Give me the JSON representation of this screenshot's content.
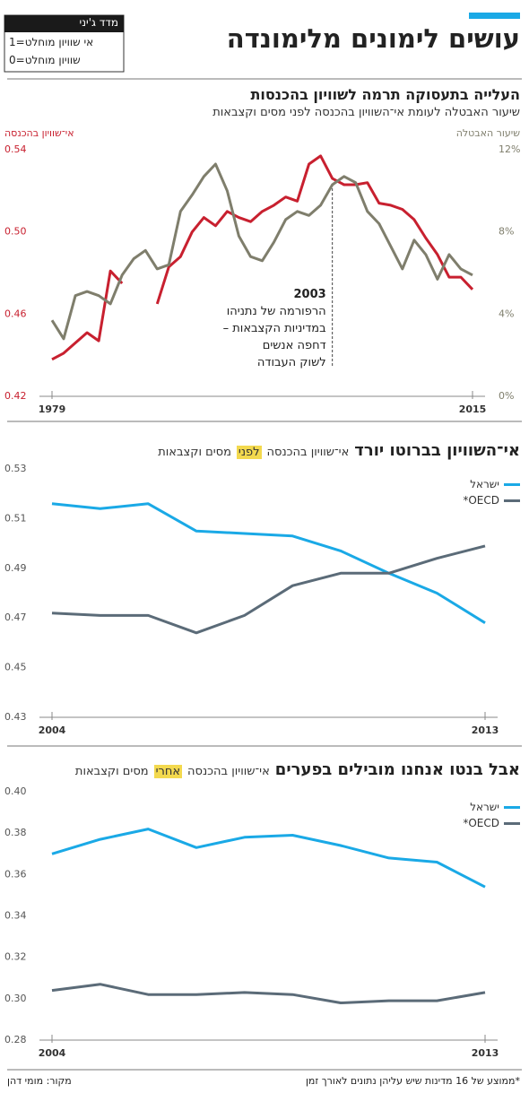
{
  "header": {
    "title": "עושים לימונים מלימונדה"
  },
  "legend_box": {
    "title": "מדד ג'יני",
    "items": [
      "1=אי שוויון מוחלט",
      "0=שוויון מוחלט"
    ]
  },
  "chart_data": [
    {
      "type": "line",
      "title": "העלייה בתעסוקה תרמה לשוויון בהכנסות",
      "subtitle": "שיעור האבטלה לעומת אי־השוויון בהכנסה לפני מסים וקצבאות",
      "ylabel": "אי־שוויון בהכנסה",
      "y2label": "שיעור האבטלה",
      "colored_axes": true,
      "x": [
        1979,
        1980,
        1981,
        1982,
        1983,
        1984,
        1985,
        1986,
        1987,
        1988,
        1989,
        1990,
        1991,
        1992,
        1993,
        1994,
        1995,
        1996,
        1997,
        1998,
        1999,
        2000,
        2001,
        2002,
        2003,
        2004,
        2005,
        2006,
        2007,
        2008,
        2009,
        2010,
        2011,
        2012,
        2013,
        2014,
        2015
      ],
      "xlim": [
        1979,
        2015
      ],
      "xticks": [
        1979,
        2015
      ],
      "ylim": [
        0.42,
        0.54
      ],
      "yticks": [
        0.42,
        0.46,
        {
          "value": 0.5,
          "label": "0.50"
        },
        0.54
      ],
      "y2lim": [
        0,
        12
      ],
      "y2ticks": [
        {
          "value": 0,
          "label": "0%"
        },
        {
          "value": 4,
          "label": "4%"
        },
        {
          "value": 8,
          "label": "8%"
        },
        {
          "value": 12,
          "label": "12%"
        }
      ],
      "series": [
        {
          "color": "#c8202f",
          "values": [
            0.438,
            0.441,
            0.446,
            0.451,
            0.447,
            0.481,
            0.475,
            null,
            null,
            0.465,
            0.483,
            0.488,
            0.5,
            0.507,
            0.503,
            0.51,
            0.507,
            0.505,
            0.51,
            0.513,
            0.517,
            0.515,
            0.533,
            0.537,
            0.526,
            0.523,
            0.523,
            0.524,
            0.514,
            0.513,
            0.511,
            0.506,
            0.497,
            0.489,
            0.478,
            0.478,
            0.472
          ]
        },
        {
          "color": "#7f7e6c",
          "axis": "y2",
          "values": [
            3.7,
            2.8,
            4.9,
            5.1,
            4.9,
            4.5,
            5.9,
            6.7,
            7.1,
            6.2,
            6.4,
            9.0,
            9.8,
            10.7,
            11.3,
            10.0,
            7.8,
            6.8,
            6.6,
            7.5,
            8.6,
            9.0,
            8.8,
            9.3,
            10.3,
            10.7,
            10.4,
            9.0,
            8.4,
            7.3,
            6.2,
            7.6,
            6.9,
            5.7,
            6.9,
            6.2,
            5.9
          ]
        }
      ],
      "annotation": {
        "x": 2003,
        "label": "2003",
        "text": [
          "הרפורמה של נתניהו",
          "במדיניות הקצבאות –",
          "דחפה אנשים",
          "לשוק העבודה"
        ]
      }
    },
    {
      "type": "line",
      "title": "אי־השוויון בברוטו יורד",
      "subtitle": {
        "before": "אי־שוויון בהכנסה",
        "highlight": "לפני",
        "after": "מסים וקצבאות"
      },
      "x": [
        2004,
        2005,
        2006,
        2007,
        2008,
        2009,
        2010,
        2011,
        2012,
        2013
      ],
      "xlim": [
        2004,
        2013
      ],
      "xticks": [
        2004,
        2013
      ],
      "ylim": [
        0.43,
        0.53
      ],
      "yticks": [
        0.43,
        0.45,
        0.47,
        0.49,
        0.51,
        0.53
      ],
      "legend": "top-right",
      "series": [
        {
          "name": "ישראל",
          "color": "#1aa9e6",
          "values": [
            0.516,
            0.514,
            0.516,
            0.505,
            0.504,
            0.503,
            0.497,
            0.488,
            0.48,
            0.468
          ]
        },
        {
          "name": "OECD*",
          "color": "#5b6b78",
          "values": [
            0.472,
            0.471,
            0.471,
            0.464,
            0.471,
            0.483,
            0.488,
            0.488,
            0.494,
            0.499
          ]
        }
      ]
    },
    {
      "type": "line",
      "title": "אבל בנטו אנחנו מובילים בפערים",
      "subtitle": {
        "before": "אי־שוויון בהכנסה",
        "highlight": "אחרי",
        "after": "מסים וקצבאות"
      },
      "x": [
        2004,
        2005,
        2006,
        2007,
        2008,
        2009,
        2010,
        2011,
        2012,
        2013
      ],
      "xlim": [
        2004,
        2013
      ],
      "xticks": [
        2004,
        2013
      ],
      "ylim": [
        0.28,
        0.4
      ],
      "yticks": [
        0.28,
        {
          "value": 0.3,
          "label": "0.30"
        },
        0.32,
        0.34,
        0.36,
        0.38,
        {
          "value": 0.4,
          "label": "0.40"
        }
      ],
      "legend": "top-right",
      "series": [
        {
          "name": "ישראל",
          "color": "#1aa9e6",
          "values": [
            0.37,
            0.377,
            0.382,
            0.373,
            0.378,
            0.379,
            0.374,
            0.368,
            0.366,
            0.354
          ]
        },
        {
          "name": "OECD*",
          "color": "#5b6b78",
          "values": [
            0.304,
            0.307,
            0.302,
            0.302,
            0.303,
            0.302,
            0.298,
            0.299,
            0.299,
            0.303
          ]
        }
      ]
    }
  ],
  "footnote": "*ממוצע של 16 מדינות שיש עליהן נתונים לאורך זמן",
  "source": "מקור: מומי דהן"
}
